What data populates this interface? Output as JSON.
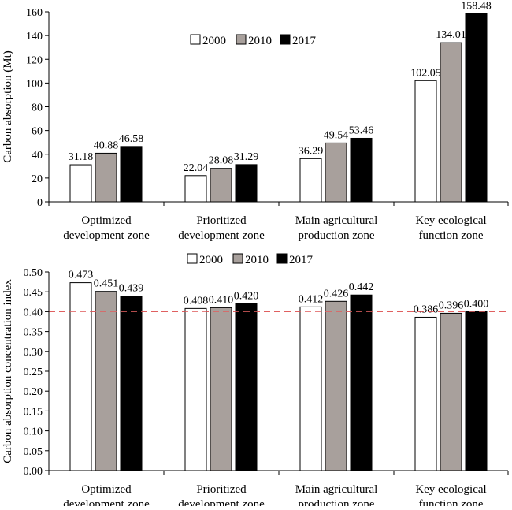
{
  "chart_data": [
    {
      "type": "bar",
      "categories": [
        [
          "Optimized",
          "development zone"
        ],
        [
          "Prioritized",
          "development zone"
        ],
        [
          "Main agricultural",
          "production zone"
        ],
        [
          "Key ecological",
          "function zone"
        ]
      ],
      "series": [
        {
          "name": "2000",
          "values": [
            31.18,
            22.04,
            36.29,
            102.05
          ],
          "color": "#ffffff"
        },
        {
          "name": "2010",
          "values": [
            40.88,
            28.08,
            49.54,
            134.01
          ],
          "color": "#a8a09c"
        },
        {
          "name": "2017",
          "values": [
            46.58,
            31.29,
            53.46,
            158.48
          ],
          "color": "#000000"
        }
      ],
      "data_labels": [
        [
          "31.18",
          "22.04",
          "36.29",
          "102.05"
        ],
        [
          "40.88",
          "28.08",
          "49.54",
          "134.01"
        ],
        [
          "46.58",
          "31.29",
          "53.46",
          "158.48"
        ]
      ],
      "title": "",
      "xlabel": "",
      "ylabel": "Carbon absorption (Mt)",
      "ylim": [
        0,
        160
      ],
      "yticks": [
        "0",
        "20",
        "40",
        "60",
        "80",
        "100",
        "120",
        "140",
        "160"
      ],
      "legend": "top-center",
      "grid": false
    },
    {
      "type": "bar",
      "categories": [
        [
          "Optimized",
          "development zone"
        ],
        [
          "Prioritized",
          "development zone"
        ],
        [
          "Main agricultural",
          "production zone"
        ],
        [
          "Key ecological",
          "function zone"
        ]
      ],
      "series": [
        {
          "name": "2000",
          "values": [
            0.473,
            0.408,
            0.412,
            0.386
          ],
          "color": "#ffffff"
        },
        {
          "name": "2010",
          "values": [
            0.451,
            0.41,
            0.426,
            0.396
          ],
          "color": "#a8a09c"
        },
        {
          "name": "2017",
          "values": [
            0.439,
            0.42,
            0.442,
            0.4
          ],
          "color": "#000000"
        }
      ],
      "data_labels": [
        [
          "0.473",
          "0.408",
          "0.412",
          "0.386"
        ],
        [
          "0.451",
          "0.410",
          "0.426",
          "0.396"
        ],
        [
          "0.439",
          "0.420",
          "0.442",
          "0.400"
        ]
      ],
      "title": "",
      "xlabel": "",
      "ylabel": "Carbon absorption concentration index",
      "ylim": [
        0,
        0.5
      ],
      "yticks": [
        "0.00",
        "0.05",
        "0.10",
        "0.15",
        "0.20",
        "0.25",
        "0.30",
        "0.35",
        "0.40",
        "0.45",
        "0.50"
      ],
      "reference_line": {
        "value": 0.4,
        "color": "#e06060",
        "style": "dashed"
      },
      "legend": "top-center",
      "grid": false
    }
  ]
}
